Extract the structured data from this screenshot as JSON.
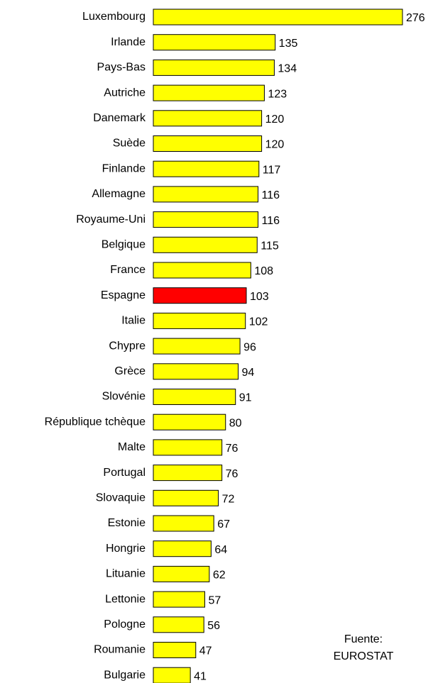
{
  "chart_data": {
    "type": "bar",
    "orientation": "horizontal",
    "categories": [
      "Luxembourg",
      "Irlande",
      "Pays-Bas",
      "Autriche",
      "Danemark",
      "Suède",
      "Finlande",
      "Allemagne",
      "Royaume-Uni",
      "Belgique",
      "France",
      "Espagne",
      "Italie",
      "Chypre",
      "Grèce",
      "Slovénie",
      "République tchèque",
      "Malte",
      "Portugal",
      "Slovaquie",
      "Estonie",
      "Hongrie",
      "Lituanie",
      "Lettonie",
      "Pologne",
      "Roumanie",
      "Bulgarie"
    ],
    "values": [
      276,
      135,
      134,
      123,
      120,
      120,
      117,
      116,
      116,
      115,
      108,
      103,
      102,
      96,
      94,
      91,
      80,
      76,
      76,
      72,
      67,
      64,
      62,
      57,
      56,
      47,
      41
    ],
    "colors": [
      "#ffff00",
      "#ffff00",
      "#ffff00",
      "#ffff00",
      "#ffff00",
      "#ffff00",
      "#ffff00",
      "#ffff00",
      "#ffff00",
      "#ffff00",
      "#ffff00",
      "#ff0000",
      "#ffff00",
      "#ffff00",
      "#ffff00",
      "#ffff00",
      "#ffff00",
      "#ffff00",
      "#ffff00",
      "#ffff00",
      "#ffff00",
      "#ffff00",
      "#ffff00",
      "#ffff00",
      "#ffff00",
      "#ffff00",
      "#ffff00"
    ],
    "annotation": [
      "Fuente:",
      "EUROSTAT"
    ]
  }
}
